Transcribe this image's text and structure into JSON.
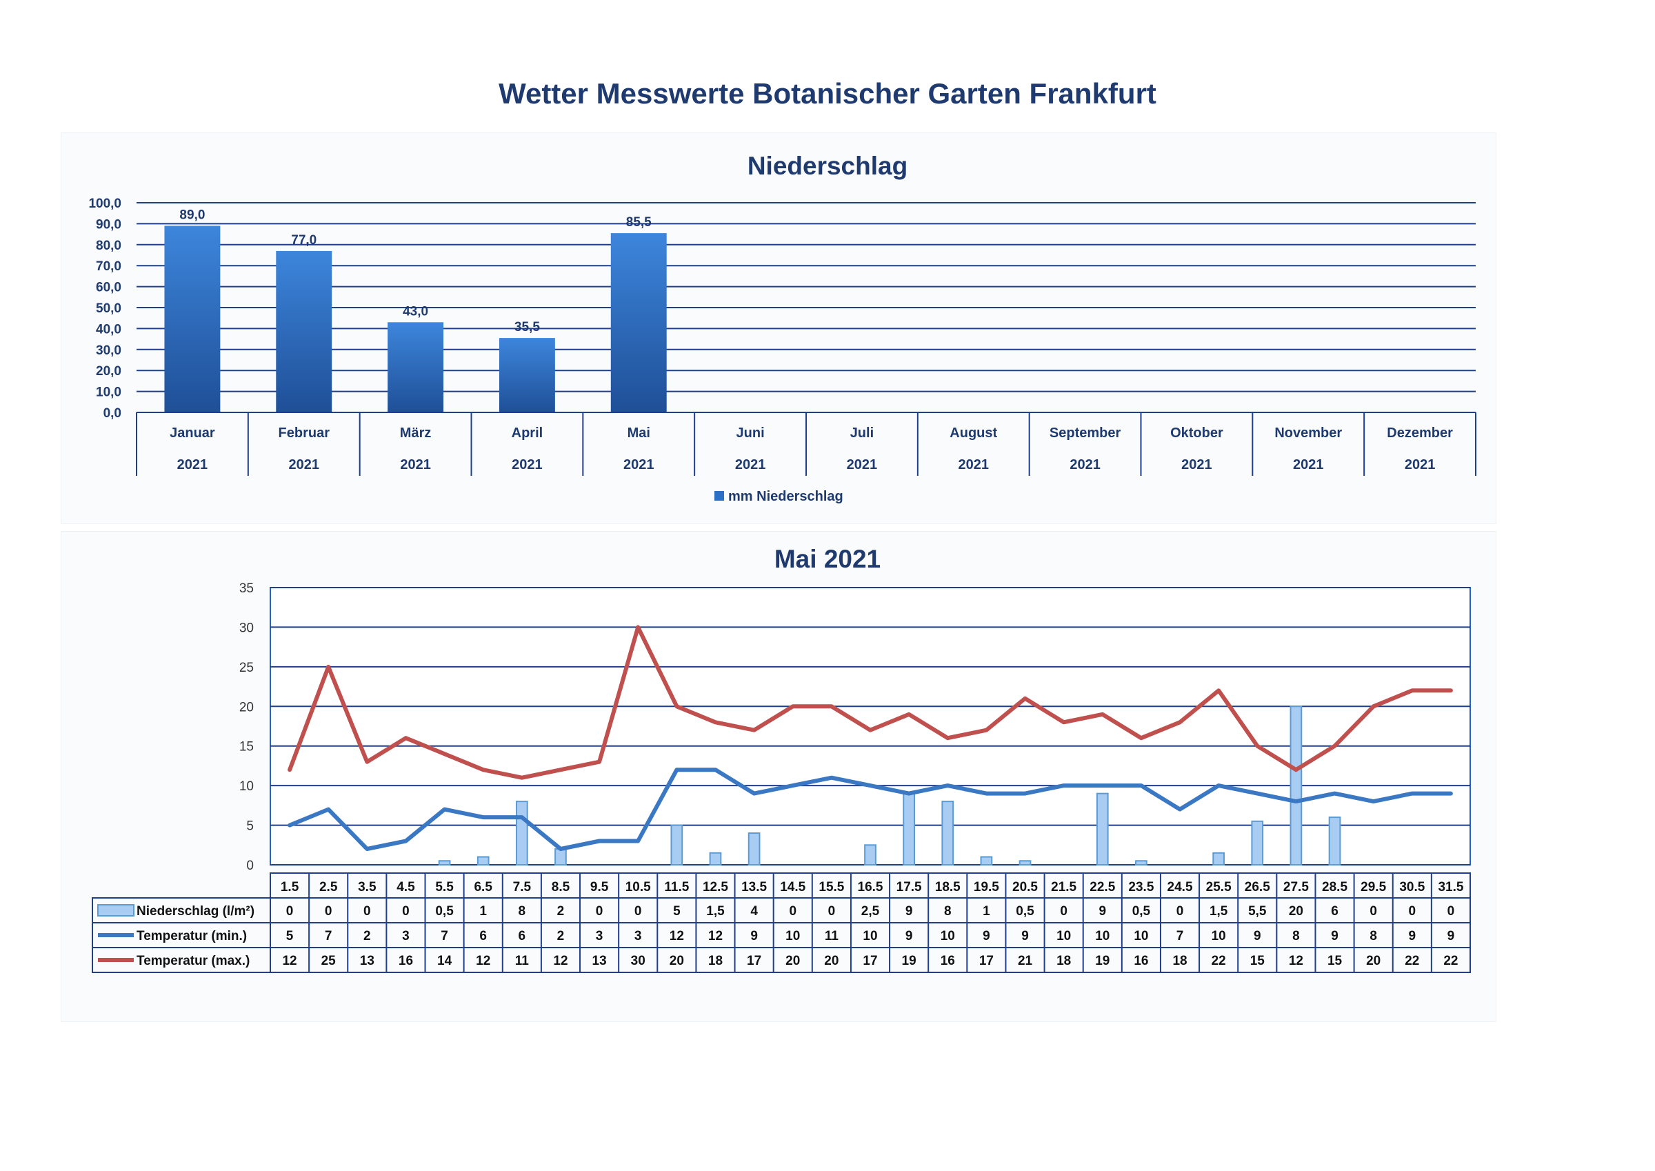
{
  "page": {
    "title": "Wetter Messwerte Botanischer Garten Frankfurt"
  },
  "colors": {
    "bar": "#2e6fc6",
    "bar_light": "#a9cdf2",
    "line_min": "#3b78c3",
    "line_max": "#c0504d",
    "grid": "#1f3f8e",
    "text": "#1f3a6e"
  },
  "chart_data": [
    {
      "type": "bar",
      "title": "Niederschlag",
      "categories": [
        "Januar",
        "Februar",
        "März",
        "April",
        "Mai",
        "Juni",
        "Juli",
        "August",
        "September",
        "Oktober",
        "November",
        "Dezember"
      ],
      "category_sublabels": [
        "2021",
        "2021",
        "2021",
        "2021",
        "2021",
        "2021",
        "2021",
        "2021",
        "2021",
        "2021",
        "2021",
        "2021"
      ],
      "series": [
        {
          "name": "mm Niederschlag",
          "values": [
            89.0,
            77.0,
            43.0,
            35.5,
            85.5,
            null,
            null,
            null,
            null,
            null,
            null,
            null
          ]
        }
      ],
      "data_labels": [
        "89,0",
        "77,0",
        "43,0",
        "35,5",
        "85,5"
      ],
      "y_ticks": [
        "0,0",
        "10,0",
        "20,0",
        "30,0",
        "40,0",
        "50,0",
        "60,0",
        "70,0",
        "80,0",
        "90,0",
        "100,0"
      ],
      "ylim": [
        0,
        100
      ],
      "grid": true,
      "legend": "bottom"
    },
    {
      "type": "line",
      "title": "Mai 2021",
      "categories": [
        "1.5",
        "2.5",
        "3.5",
        "4.5",
        "5.5",
        "6.5",
        "7.5",
        "8.5",
        "9.5",
        "10.5",
        "11.5",
        "12.5",
        "13.5",
        "14.5",
        "15.5",
        "16.5",
        "17.5",
        "18.5",
        "19.5",
        "20.5",
        "21.5",
        "22.5",
        "23.5",
        "24.5",
        "25.5",
        "26.5",
        "27.5",
        "28.5",
        "29.5",
        "30.5",
        "31.5"
      ],
      "series": [
        {
          "name": "Niederschlag (l/m²)",
          "kind": "bar",
          "values": [
            0,
            0,
            0,
            0,
            0.5,
            1,
            8,
            2,
            0,
            0,
            5,
            1.5,
            4,
            0,
            0,
            2.5,
            9,
            8,
            1,
            0.5,
            0,
            9,
            0.5,
            0,
            1.5,
            5.5,
            20,
            6,
            0,
            0,
            0
          ],
          "labels": [
            "0",
            "0",
            "0",
            "0",
            "0,5",
            "1",
            "8",
            "2",
            "0",
            "0",
            "5",
            "1,5",
            "4",
            "0",
            "0",
            "2,5",
            "9",
            "8",
            "1",
            "0,5",
            "0",
            "9",
            "0,5",
            "0",
            "1,5",
            "5,5",
            "20",
            "6",
            "0",
            "0",
            "0"
          ]
        },
        {
          "name": "Temperatur (min.)",
          "kind": "line",
          "values": [
            5,
            7,
            2,
            3,
            7,
            6,
            6,
            2,
            3,
            3,
            12,
            12,
            9,
            10,
            11,
            10,
            9,
            10,
            9,
            9,
            10,
            10,
            10,
            7,
            10,
            9,
            8,
            9,
            8,
            9,
            9
          ],
          "labels": [
            "5",
            "7",
            "2",
            "3",
            "7",
            "6",
            "6",
            "2",
            "3",
            "3",
            "12",
            "12",
            "9",
            "10",
            "11",
            "10",
            "9",
            "10",
            "9",
            "9",
            "10",
            "10",
            "10",
            "7",
            "10",
            "9",
            "8",
            "9",
            "8",
            "9",
            "9"
          ]
        },
        {
          "name": "Temperatur (max.)",
          "kind": "line",
          "values": [
            12,
            25,
            13,
            16,
            14,
            12,
            11,
            12,
            13,
            30,
            20,
            18,
            17,
            20,
            20,
            17,
            19,
            16,
            17,
            21,
            18,
            19,
            16,
            18,
            22,
            15,
            12,
            15,
            20,
            22,
            22
          ],
          "labels": [
            "12",
            "25",
            "13",
            "16",
            "14",
            "12",
            "11",
            "12",
            "13",
            "30",
            "20",
            "18",
            "17",
            "20",
            "20",
            "17",
            "19",
            "16",
            "17",
            "21",
            "18",
            "19",
            "16",
            "18",
            "22",
            "15",
            "12",
            "15",
            "20",
            "22",
            "22"
          ]
        }
      ],
      "y_ticks": [
        "0",
        "5",
        "10",
        "15",
        "20",
        "25",
        "30",
        "35"
      ],
      "ylim": [
        0,
        35
      ],
      "grid": true,
      "legend": "data-table"
    }
  ]
}
